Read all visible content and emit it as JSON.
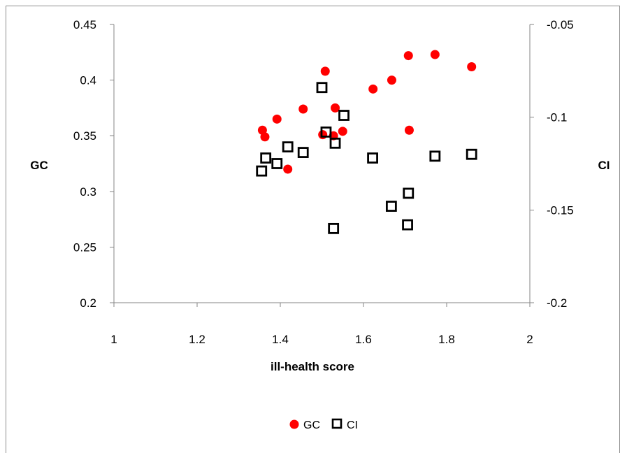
{
  "chart_data": {
    "type": "scatter",
    "title": "",
    "xlabel": "ill-health score",
    "ylabel_left": "GC",
    "ylabel_right": "CI",
    "xlim": [
      1,
      2
    ],
    "ylim_left": [
      0.2,
      0.45
    ],
    "ylim_right": [
      -0.2,
      -0.05
    ],
    "x_ticks": [
      1,
      1.2,
      1.4,
      1.6,
      1.8,
      2
    ],
    "x_tick_labels": [
      "1",
      "1.2",
      "1.4",
      "1.6",
      "1.8",
      "2"
    ],
    "y_left_ticks": [
      0.2,
      0.25,
      0.3,
      0.35,
      0.4,
      0.45
    ],
    "y_left_tick_labels": [
      "0.2",
      "0.25",
      "0.3",
      "0.35",
      "0.4",
      "0.45"
    ],
    "y_right_ticks": [
      -0.2,
      -0.15,
      -0.1,
      -0.05
    ],
    "y_right_tick_labels": [
      "-0.2",
      "-0.15",
      "-0.1",
      "-0.05"
    ],
    "grid": false,
    "legend_position": "bottom-center",
    "series": [
      {
        "name": "GC",
        "axis": "left",
        "marker": "filled-circle",
        "color": "#ff0000",
        "points": [
          {
            "x": 1.357,
            "y": 0.355
          },
          {
            "x": 1.363,
            "y": 0.349
          },
          {
            "x": 1.392,
            "y": 0.365
          },
          {
            "x": 1.418,
            "y": 0.32
          },
          {
            "x": 1.455,
            "y": 0.374
          },
          {
            "x": 1.502,
            "y": 0.351
          },
          {
            "x": 1.508,
            "y": 0.408
          },
          {
            "x": 1.528,
            "y": 0.35
          },
          {
            "x": 1.532,
            "y": 0.375
          },
          {
            "x": 1.55,
            "y": 0.354
          },
          {
            "x": 1.623,
            "y": 0.392
          },
          {
            "x": 1.668,
            "y": 0.4
          },
          {
            "x": 1.708,
            "y": 0.422
          },
          {
            "x": 1.71,
            "y": 0.355
          },
          {
            "x": 1.772,
            "y": 0.423
          },
          {
            "x": 1.86,
            "y": 0.412
          }
        ]
      },
      {
        "name": "CI",
        "axis": "right",
        "marker": "hollow-square",
        "color": "#000000",
        "points": [
          {
            "x": 1.355,
            "y": -0.129
          },
          {
            "x": 1.365,
            "y": -0.122
          },
          {
            "x": 1.392,
            "y": -0.125
          },
          {
            "x": 1.418,
            "y": -0.116
          },
          {
            "x": 1.455,
            "y": -0.119
          },
          {
            "x": 1.5,
            "y": -0.084
          },
          {
            "x": 1.51,
            "y": -0.108
          },
          {
            "x": 1.528,
            "y": -0.16
          },
          {
            "x": 1.532,
            "y": -0.114
          },
          {
            "x": 1.553,
            "y": -0.099
          },
          {
            "x": 1.622,
            "y": -0.122
          },
          {
            "x": 1.667,
            "y": -0.148
          },
          {
            "x": 1.706,
            "y": -0.158
          },
          {
            "x": 1.708,
            "y": -0.141
          },
          {
            "x": 1.772,
            "y": -0.121
          },
          {
            "x": 1.86,
            "y": -0.12
          }
        ]
      }
    ]
  }
}
